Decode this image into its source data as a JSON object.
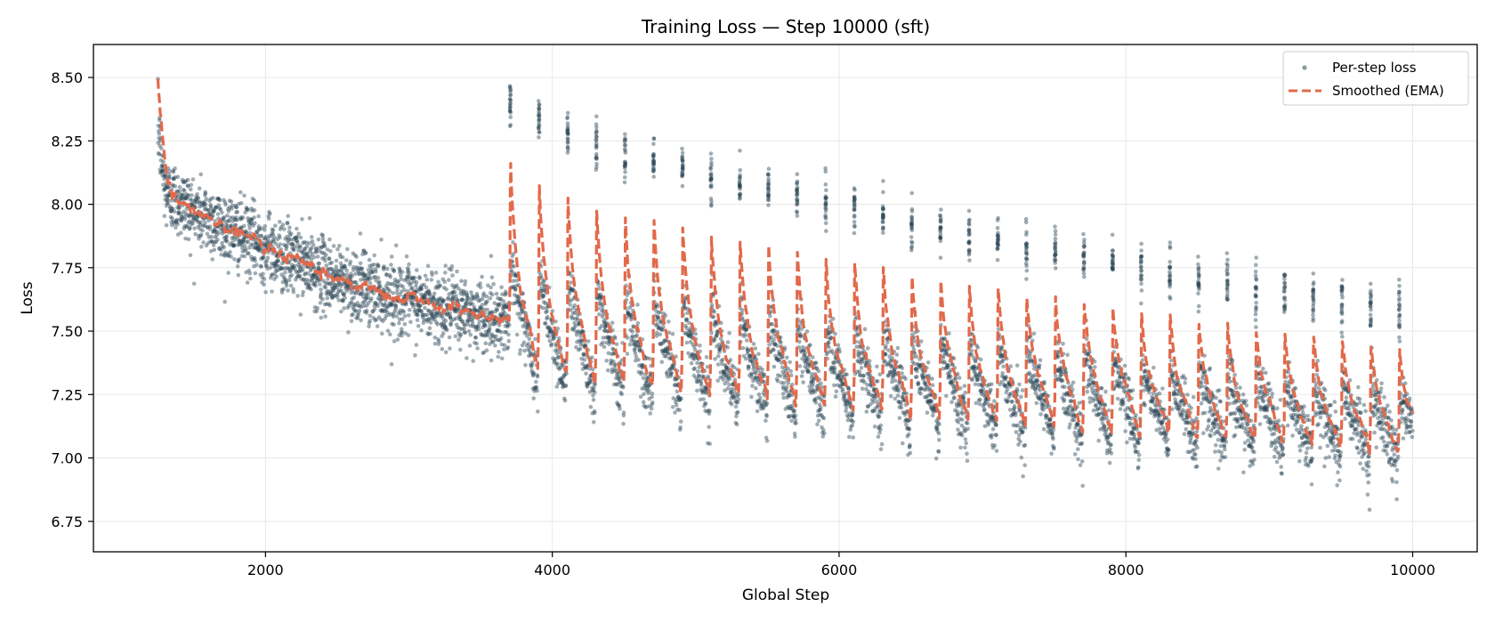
{
  "colors": {
    "scatter": "#2c4856",
    "ema": "#e2694a",
    "grid": "#e8e8e8",
    "axes": "#000000"
  },
  "chart_data": {
    "type": "scatter",
    "title": "Training Loss — Step 10000 (sft)",
    "xlabel": "Global Step",
    "ylabel": "Loss",
    "xlim": [
      800,
      10450
    ],
    "ylim": [
      6.63,
      8.63
    ],
    "xticks": [
      2000,
      4000,
      6000,
      8000,
      10000
    ],
    "yticks": [
      6.75,
      7.0,
      7.25,
      7.5,
      7.75,
      8.0,
      8.25,
      8.5
    ],
    "grid": true,
    "legend_position": "top-right",
    "legend": [
      "Per-step loss",
      "Smoothed (EMA)"
    ],
    "series": [
      {
        "name": "Per-step loss",
        "kind": "scatter",
        "color": "#2c4856",
        "phase1": {
          "x_start": 1250,
          "x_end": 3700,
          "anchors": [
            [
              1250,
              8.3
            ],
            [
              1300,
              8.05
            ],
            [
              1500,
              7.97
            ],
            [
              2000,
              7.83
            ],
            [
              2500,
              7.7
            ],
            [
              3000,
              7.62
            ],
            [
              3500,
              7.56
            ],
            [
              3700,
              7.55
            ]
          ],
          "spread": 0.07
        },
        "phase2": {
          "cycle_length": 200,
          "first_cycle_start": 3700,
          "n_cycles": 32,
          "peak_first": 8.4,
          "peak_last": 7.57,
          "post_peak_first": 7.75,
          "post_peak_last": 7.25,
          "trough_first": 7.3,
          "trough_last": 6.98,
          "spread": 0.06
        }
      },
      {
        "name": "Smoothed (EMA)",
        "kind": "line",
        "style": "dashed",
        "color": "#e2694a"
      }
    ]
  }
}
